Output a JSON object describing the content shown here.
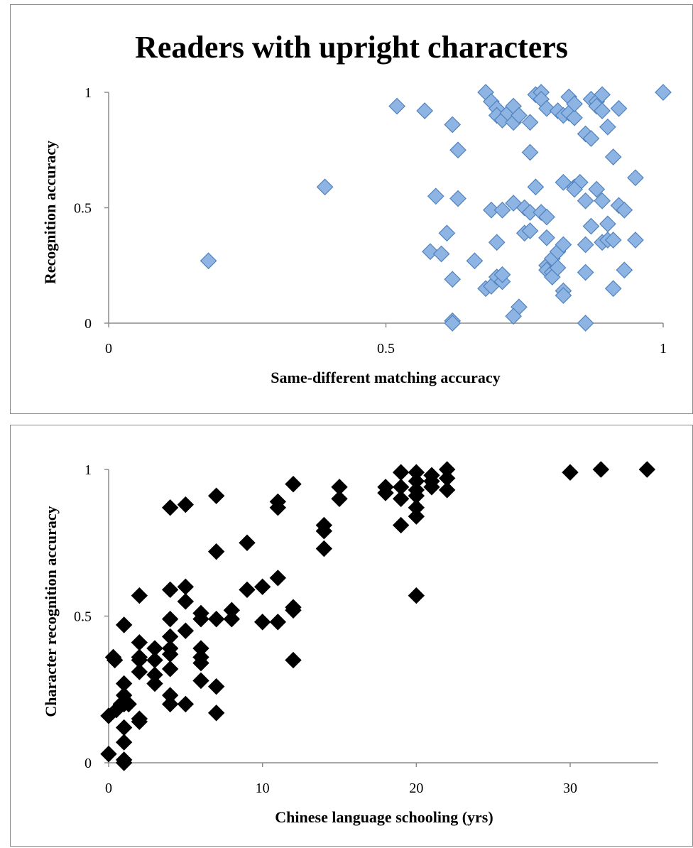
{
  "chart_data": [
    {
      "type": "scatter",
      "title": "Readers with upright characters",
      "xlabel": "Same-different matching accuracy",
      "ylabel": "Recognition accuracy",
      "xlim": [
        0,
        1
      ],
      "ylim": [
        0,
        1
      ],
      "xticks": [
        "0",
        "0.5",
        "1"
      ],
      "yticks": [
        "0",
        "0.5",
        "1"
      ],
      "grid": false,
      "legend": "none",
      "marker": "diamond",
      "colors": {
        "fill": "#8db4e2",
        "edge": "#4f81bd"
      },
      "points": [
        [
          0.18,
          0.27
        ],
        [
          0.39,
          0.59
        ],
        [
          0.52,
          0.94
        ],
        [
          0.57,
          0.92
        ],
        [
          0.62,
          0.86
        ],
        [
          0.63,
          0.75
        ],
        [
          0.59,
          0.55
        ],
        [
          0.63,
          0.54
        ],
        [
          0.58,
          0.31
        ],
        [
          0.6,
          0.3
        ],
        [
          0.61,
          0.39
        ],
        [
          0.62,
          0.19
        ],
        [
          0.62,
          0.01
        ],
        [
          0.62,
          0.0
        ],
        [
          0.66,
          0.27
        ],
        [
          0.68,
          0.15
        ],
        [
          0.69,
          0.16
        ],
        [
          0.7,
          0.2
        ],
        [
          0.71,
          0.18
        ],
        [
          0.71,
          0.21
        ],
        [
          0.7,
          0.35
        ],
        [
          0.69,
          0.49
        ],
        [
          0.71,
          0.49
        ],
        [
          0.73,
          0.52
        ],
        [
          0.68,
          1.0
        ],
        [
          0.69,
          0.96
        ],
        [
          0.7,
          0.93
        ],
        [
          0.7,
          0.9
        ],
        [
          0.71,
          0.88
        ],
        [
          0.72,
          0.91
        ],
        [
          0.73,
          0.94
        ],
        [
          0.73,
          0.87
        ],
        [
          0.74,
          0.9
        ],
        [
          0.75,
          0.39
        ],
        [
          0.75,
          0.5
        ],
        [
          0.76,
          0.48
        ],
        [
          0.76,
          0.4
        ],
        [
          0.76,
          0.74
        ],
        [
          0.76,
          0.87
        ],
        [
          0.77,
          0.59
        ],
        [
          0.77,
          0.99
        ],
        [
          0.78,
          1.0
        ],
        [
          0.78,
          0.97
        ],
        [
          0.79,
          0.93
        ],
        [
          0.78,
          0.48
        ],
        [
          0.79,
          0.46
        ],
        [
          0.79,
          0.37
        ],
        [
          0.79,
          0.25
        ],
        [
          0.79,
          0.23
        ],
        [
          0.8,
          0.22
        ],
        [
          0.8,
          0.28
        ],
        [
          0.8,
          0.2
        ],
        [
          0.81,
          0.24
        ],
        [
          0.81,
          0.31
        ],
        [
          0.82,
          0.34
        ],
        [
          0.82,
          0.61
        ],
        [
          0.81,
          0.92
        ],
        [
          0.82,
          0.9
        ],
        [
          0.83,
          0.98
        ],
        [
          0.83,
          0.91
        ],
        [
          0.84,
          0.89
        ],
        [
          0.84,
          0.95
        ],
        [
          0.84,
          0.59
        ],
        [
          0.85,
          0.61
        ],
        [
          0.84,
          0.58
        ],
        [
          0.86,
          0.34
        ],
        [
          0.86,
          0.82
        ],
        [
          0.86,
          0.53
        ],
        [
          0.87,
          0.42
        ],
        [
          0.87,
          0.8
        ],
        [
          0.87,
          0.97
        ],
        [
          0.88,
          0.96
        ],
        [
          0.88,
          0.94
        ],
        [
          0.88,
          0.58
        ],
        [
          0.89,
          0.53
        ],
        [
          0.89,
          0.99
        ],
        [
          0.89,
          0.92
        ],
        [
          0.89,
          0.35
        ],
        [
          0.9,
          0.36
        ],
        [
          0.9,
          0.85
        ],
        [
          0.9,
          0.43
        ],
        [
          0.91,
          0.36
        ],
        [
          0.91,
          0.72
        ],
        [
          0.92,
          0.93
        ],
        [
          0.92,
          0.51
        ],
        [
          0.93,
          0.49
        ],
        [
          0.93,
          0.23
        ],
        [
          0.91,
          0.15
        ],
        [
          0.86,
          0.22
        ],
        [
          0.82,
          0.14
        ],
        [
          0.82,
          0.12
        ],
        [
          0.86,
          0.0
        ],
        [
          0.74,
          0.07
        ],
        [
          0.73,
          0.03
        ],
        [
          0.95,
          0.63
        ],
        [
          0.95,
          0.36
        ],
        [
          1.0,
          1.0
        ]
      ]
    },
    {
      "type": "scatter",
      "title": "",
      "xlabel": "Chinese language schooling (yrs)",
      "ylabel": "Character recognition accuracy",
      "xlim": [
        0,
        36
      ],
      "ylim": [
        0,
        1
      ],
      "xticks": [
        "0",
        "10",
        "20",
        "30"
      ],
      "yticks": [
        "0",
        "0.5",
        "1"
      ],
      "grid": false,
      "legend": "none",
      "marker": "diamond",
      "colors": {
        "fill": "#000000",
        "edge": "#000000"
      },
      "points": [
        [
          0,
          0.03
        ],
        [
          0,
          0.16
        ],
        [
          0.3,
          0.36
        ],
        [
          0.4,
          0.35
        ],
        [
          0.5,
          0.18
        ],
        [
          0.8,
          0.2
        ],
        [
          1,
          0.47
        ],
        [
          1,
          0.27
        ],
        [
          1,
          0.23
        ],
        [
          1,
          0.2
        ],
        [
          1,
          0.12
        ],
        [
          1,
          0.07
        ],
        [
          1,
          0.01
        ],
        [
          1,
          0.0
        ],
        [
          1.3,
          0.2
        ],
        [
          2,
          0.57
        ],
        [
          2,
          0.41
        ],
        [
          2,
          0.36
        ],
        [
          2,
          0.35
        ],
        [
          2,
          0.31
        ],
        [
          2,
          0.15
        ],
        [
          2,
          0.14
        ],
        [
          3,
          0.39
        ],
        [
          3,
          0.35
        ],
        [
          3,
          0.3
        ],
        [
          3,
          0.27
        ],
        [
          4,
          0.87
        ],
        [
          4,
          0.59
        ],
        [
          4,
          0.49
        ],
        [
          4,
          0.43
        ],
        [
          4,
          0.39
        ],
        [
          4,
          0.37
        ],
        [
          4,
          0.32
        ],
        [
          4,
          0.23
        ],
        [
          4,
          0.2
        ],
        [
          5,
          0.88
        ],
        [
          5,
          0.6
        ],
        [
          5,
          0.55
        ],
        [
          5,
          0.45
        ],
        [
          5,
          0.2
        ],
        [
          6,
          0.51
        ],
        [
          6,
          0.49
        ],
        [
          6,
          0.39
        ],
        [
          6,
          0.36
        ],
        [
          6,
          0.34
        ],
        [
          6,
          0.28
        ],
        [
          7,
          0.91
        ],
        [
          7,
          0.72
        ],
        [
          7,
          0.49
        ],
        [
          7,
          0.26
        ],
        [
          7,
          0.17
        ],
        [
          8,
          0.52
        ],
        [
          8,
          0.49
        ],
        [
          9,
          0.75
        ],
        [
          9,
          0.59
        ],
        [
          10,
          0.6
        ],
        [
          10,
          0.48
        ],
        [
          11,
          0.89
        ],
        [
          11,
          0.87
        ],
        [
          11,
          0.63
        ],
        [
          11,
          0.48
        ],
        [
          12,
          0.95
        ],
        [
          12,
          0.53
        ],
        [
          12,
          0.52
        ],
        [
          12,
          0.35
        ],
        [
          14,
          0.81
        ],
        [
          14,
          0.79
        ],
        [
          14,
          0.73
        ],
        [
          15,
          0.94
        ],
        [
          15,
          0.9
        ],
        [
          18,
          0.94
        ],
        [
          18,
          0.92
        ],
        [
          19,
          0.99
        ],
        [
          19,
          0.94
        ],
        [
          19,
          0.9
        ],
        [
          19,
          0.81
        ],
        [
          20,
          0.99
        ],
        [
          20,
          0.96
        ],
        [
          20,
          0.93
        ],
        [
          20,
          0.91
        ],
        [
          20,
          0.87
        ],
        [
          20,
          0.84
        ],
        [
          20,
          0.57
        ],
        [
          21,
          0.98
        ],
        [
          21,
          0.96
        ],
        [
          21,
          0.94
        ],
        [
          22,
          1.0
        ],
        [
          22,
          0.97
        ],
        [
          22,
          0.93
        ],
        [
          30,
          0.99
        ],
        [
          32,
          1.0
        ],
        [
          35,
          1.0
        ]
      ]
    }
  ]
}
